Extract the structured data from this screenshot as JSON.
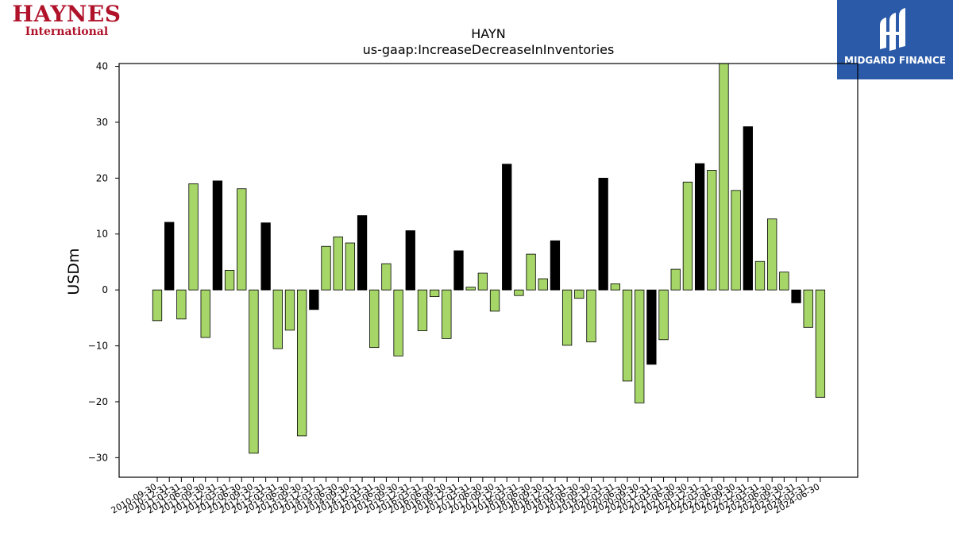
{
  "logos": {
    "left_brand": "HAYNES",
    "left_sub": "International",
    "right_name": "MIDGARD FINANCE"
  },
  "colors": {
    "bar_default": "#a6d668",
    "bar_highlight": "#000000",
    "logo_red": "#b0122a",
    "logo_blue": "#2b5aa8"
  },
  "chart_data": {
    "type": "bar",
    "title": "HAYN",
    "subtitle": "us-gaap:IncreaseDecreaseInInventories",
    "ylabel": "USDm",
    "xlabel": "",
    "ylim": [
      -33.5,
      40.5
    ],
    "yticks": [
      40,
      30,
      20,
      10,
      0,
      -10,
      -20,
      -30
    ],
    "ytick_labels": [
      "40",
      "30",
      "20",
      "10",
      "0",
      "−10",
      "−20",
      "−30"
    ],
    "grid": false,
    "categories": [
      "2010-09-30",
      "2010-12-31",
      "2011-03-31",
      "2011-06-30",
      "2011-09-30",
      "2011-12-31",
      "2012-03-31",
      "2012-06-30",
      "2012-09-30",
      "2012-12-31",
      "2013-03-31",
      "2013-06-30",
      "2013-09-30",
      "2013-12-31",
      "2014-03-31",
      "2014-06-30",
      "2014-09-30",
      "2014-12-31",
      "2015-03-31",
      "2015-06-30",
      "2015-09-30",
      "2015-12-31",
      "2016-03-31",
      "2016-06-30",
      "2016-09-30",
      "2016-12-31",
      "2017-03-31",
      "2017-06-30",
      "2017-09-30",
      "2017-12-31",
      "2018-03-31",
      "2018-06-30",
      "2018-09-30",
      "2018-12-31",
      "2019-03-31",
      "2019-06-30",
      "2019-09-30",
      "2019-12-31",
      "2020-03-31",
      "2020-06-30",
      "2020-09-30",
      "2020-12-31",
      "2021-03-31",
      "2021-06-30",
      "2021-09-30",
      "2021-12-31",
      "2022-03-31",
      "2022-06-30",
      "2022-09-30",
      "2022-12-31",
      "2023-03-31",
      "2023-06-30",
      "2023-09-30",
      "2023-12-31",
      "2024-03-31",
      "2024-06-30"
    ],
    "values": [
      -5.5,
      12.1,
      -5.2,
      19.0,
      -8.5,
      19.5,
      3.5,
      18.1,
      -29.2,
      12.0,
      -10.5,
      -7.2,
      -26.1,
      -3.5,
      7.8,
      9.5,
      8.4,
      13.3,
      -10.3,
      4.7,
      -11.8,
      10.6,
      -7.3,
      -1.2,
      -8.7,
      7.0,
      0.5,
      3.0,
      -3.8,
      22.5,
      -1.0,
      6.4,
      2.0,
      8.8,
      -9.9,
      -1.5,
      -9.3,
      20.0,
      1.1,
      -16.3,
      -20.2,
      -13.3,
      -8.9,
      3.7,
      19.3,
      22.6,
      21.4,
      40.5,
      17.8,
      29.2,
      5.1,
      12.7,
      3.2,
      -2.3,
      -6.7,
      -19.2
    ],
    "highlight": [
      false,
      true,
      false,
      false,
      false,
      true,
      false,
      false,
      false,
      true,
      false,
      false,
      false,
      true,
      false,
      false,
      false,
      true,
      false,
      false,
      false,
      true,
      false,
      false,
      false,
      true,
      false,
      false,
      false,
      true,
      false,
      false,
      false,
      true,
      false,
      false,
      false,
      true,
      false,
      false,
      false,
      true,
      false,
      false,
      false,
      true,
      false,
      false,
      false,
      true,
      false,
      false,
      false,
      true,
      false,
      false
    ]
  }
}
